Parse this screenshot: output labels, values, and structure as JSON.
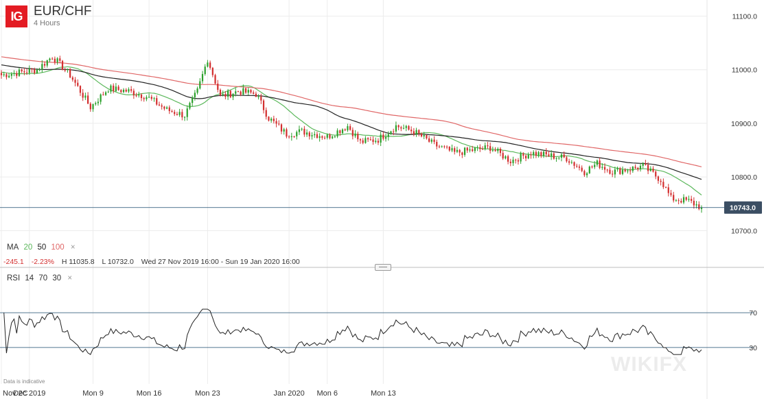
{
  "header": {
    "logo": "IG",
    "symbol": "EUR/CHF",
    "timeframe": "4 Hours"
  },
  "ma_legend": {
    "label": "MA",
    "p20": "20",
    "p50": "50",
    "p100": "100",
    "close": "×"
  },
  "stats": {
    "change": "-245.1",
    "change_pct": "-2.23%",
    "high": "H 11035.8",
    "low": "L 10732.0",
    "range": "Wed 27 Nov 2019 16:00 - Sun 19 Jan 2020 16:00"
  },
  "rsi_legend": {
    "label": "RSI",
    "period": "14",
    "upper": "70",
    "lower": "30",
    "close": "×"
  },
  "disclaimer": "Data is indicative",
  "watermark": "WIKIFX",
  "colors": {
    "up": "#2ca02c",
    "down": "#d32f2f",
    "ma20": "#5cb85c",
    "ma50": "#222222",
    "ma100": "#e06666",
    "rsi": "#222222",
    "guide": "#1a4a6e"
  },
  "chart_data": {
    "type": "candlestick",
    "instrument": "EUR/CHF",
    "interval": "4 Hours",
    "y_range": [
      10680,
      11130
    ],
    "y_ticks": [
      10700.0,
      10800.0,
      10900.0,
      11000.0,
      11100.0
    ],
    "y_tick_labels": [
      "10700.0",
      "10800.0",
      "10900.0",
      "11000.0",
      "11100.0"
    ],
    "x_tick_labels": [
      "Nov 2C",
      "Dec 2019",
      "Mon 9",
      "Mon 16",
      "Mon 23",
      "Jan 2020",
      "Mon 6",
      "Mon 13"
    ],
    "last_price": 10743.0,
    "last_price_label": "10743.0",
    "anchors": [
      [
        0,
        10990
      ],
      [
        14,
        11000
      ],
      [
        20,
        11025
      ],
      [
        27,
        10990
      ],
      [
        35,
        10930
      ],
      [
        42,
        10965
      ],
      [
        50,
        10960
      ],
      [
        57,
        10950
      ],
      [
        65,
        10925
      ],
      [
        72,
        10915
      ],
      [
        77,
        10960
      ],
      [
        81,
        11020
      ],
      [
        86,
        10950
      ],
      [
        93,
        10960
      ],
      [
        100,
        10955
      ],
      [
        105,
        10910
      ],
      [
        112,
        10880
      ],
      [
        118,
        10885
      ],
      [
        128,
        10875
      ],
      [
        136,
        10895
      ],
      [
        141,
        10865
      ],
      [
        148,
        10870
      ],
      [
        155,
        10895
      ],
      [
        162,
        10885
      ],
      [
        170,
        10860
      ],
      [
        178,
        10845
      ],
      [
        185,
        10850
      ],
      [
        192,
        10855
      ],
      [
        200,
        10830
      ],
      [
        208,
        10845
      ],
      [
        215,
        10840
      ],
      [
        222,
        10835
      ],
      [
        229,
        10810
      ],
      [
        234,
        10825
      ],
      [
        240,
        10810
      ],
      [
        247,
        10815
      ],
      [
        252,
        10820
      ],
      [
        259,
        10795
      ],
      [
        263,
        10760
      ],
      [
        270,
        10755
      ],
      [
        275,
        10743
      ]
    ],
    "ma": [
      {
        "name": "MA 20",
        "period": 20
      },
      {
        "name": "MA 50",
        "period": 50
      },
      {
        "name": "MA 100",
        "period": 100
      }
    ],
    "rsi": {
      "period": 14,
      "upper": 70,
      "lower": 30,
      "y_tick_labels": [
        "70",
        "30"
      ],
      "range": [
        0,
        100
      ]
    }
  }
}
